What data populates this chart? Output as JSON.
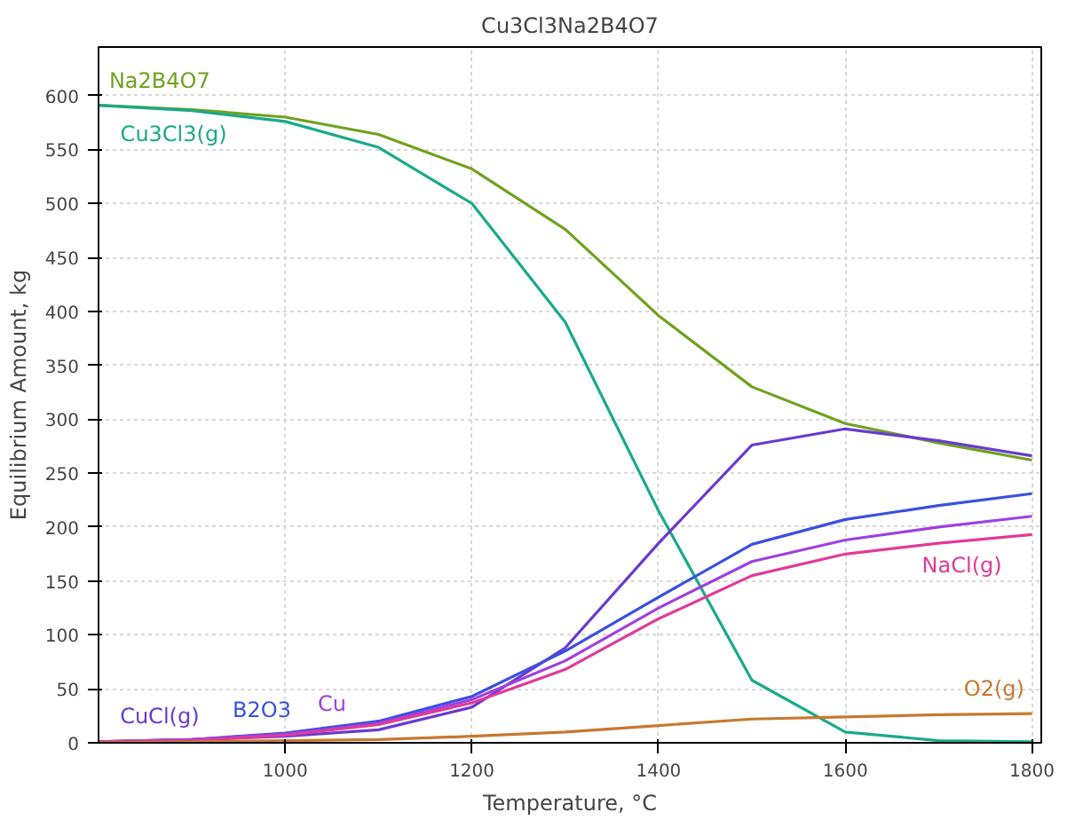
{
  "chart_data": {
    "type": "line",
    "title": "Cu3Cl3Na2B4O7",
    "xlabel": "Temperature, °C",
    "ylabel": "Equilibrium Amount, kg",
    "x": [
      800,
      900,
      1000,
      1100,
      1200,
      1300,
      1400,
      1500,
      1600,
      1700,
      1800
    ],
    "xlim": [
      800,
      1810
    ],
    "ylim": [
      0,
      645
    ],
    "xticks": [
      1000,
      1200,
      1400,
      1600,
      1800
    ],
    "yticks": [
      0,
      50,
      100,
      150,
      200,
      250,
      300,
      350,
      400,
      450,
      500,
      550,
      600
    ],
    "grid": true,
    "legend": false,
    "line_style": "solid",
    "marker": "none",
    "series": [
      {
        "name": "Na2B4O7",
        "color": "#6fa21e",
        "values": [
          591,
          587,
          580,
          564,
          532,
          476,
          396,
          330,
          296,
          278,
          262
        ]
      },
      {
        "name": "Cu3Cl3(g)",
        "color": "#1aaa8a",
        "values": [
          591,
          586,
          576,
          552,
          500,
          390,
          215,
          58,
          10,
          2,
          1
        ]
      },
      {
        "name": "CuCl(g)",
        "color": "#6a3ad0",
        "values": [
          1,
          3,
          6,
          12,
          33,
          88,
          185,
          276,
          291,
          280,
          266
        ]
      },
      {
        "name": "B2O3",
        "color": "#3a50e0",
        "values": [
          1,
          3,
          9,
          20,
          43,
          85,
          135,
          184,
          207,
          220,
          231
        ]
      },
      {
        "name": "Cu",
        "color": "#a040e0",
        "values": [
          1,
          3,
          8,
          18,
          40,
          76,
          125,
          168,
          188,
          200,
          210
        ]
      },
      {
        "name": "NaCl(g)",
        "color": "#e03a9a",
        "values": [
          1,
          2,
          7,
          17,
          37,
          68,
          115,
          155,
          175,
          185,
          193
        ]
      },
      {
        "name": "O2(g)",
        "color": "#c87830",
        "values": [
          0,
          1,
          2,
          3,
          6,
          10,
          16,
          22,
          24,
          26,
          27
        ]
      }
    ]
  }
}
